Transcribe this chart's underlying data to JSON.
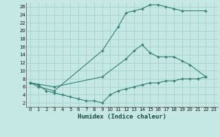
{
  "xlabel": "Humidex (Indice chaleur)",
  "background_color": "#c5e8e5",
  "grid_color": "#aad4cf",
  "line_color": "#2e7d6e",
  "xlim": [
    -0.5,
    23.5
  ],
  "ylim": [
    1,
    27
  ],
  "xticks": [
    0,
    1,
    2,
    3,
    4,
    5,
    6,
    7,
    8,
    9,
    10,
    11,
    12,
    13,
    14,
    15,
    16,
    17,
    18,
    19,
    20,
    21,
    22,
    23
  ],
  "yticks": [
    2,
    4,
    6,
    8,
    10,
    12,
    14,
    16,
    18,
    20,
    22,
    24,
    26
  ],
  "curve1_x": [
    0,
    1,
    3,
    9,
    11,
    12,
    13,
    14,
    15,
    16,
    17,
    18,
    19,
    22
  ],
  "curve1_y": [
    7,
    6,
    5,
    15,
    21,
    24.5,
    25,
    25.5,
    26.5,
    26.5,
    26,
    25.5,
    25,
    25
  ],
  "curve2_x": [
    0,
    3,
    9,
    12,
    13,
    14,
    15,
    16,
    17,
    18,
    19,
    20,
    22
  ],
  "curve2_y": [
    7,
    6,
    8.5,
    13,
    15,
    16.5,
    14.5,
    13.5,
    13.5,
    13.5,
    12.5,
    11.5,
    8.5
  ],
  "curve3_x": [
    0,
    1,
    2,
    3,
    4,
    5,
    6,
    7,
    8,
    9,
    10,
    11,
    12,
    13,
    14,
    15,
    16,
    17,
    18,
    19,
    20,
    21,
    22
  ],
  "curve3_y": [
    7,
    6.5,
    5,
    4.5,
    4,
    3.5,
    3,
    2.5,
    2.5,
    2,
    4,
    5,
    5.5,
    6,
    6.5,
    7,
    7,
    7.5,
    7.5,
    8,
    8,
    8,
    8.5
  ]
}
